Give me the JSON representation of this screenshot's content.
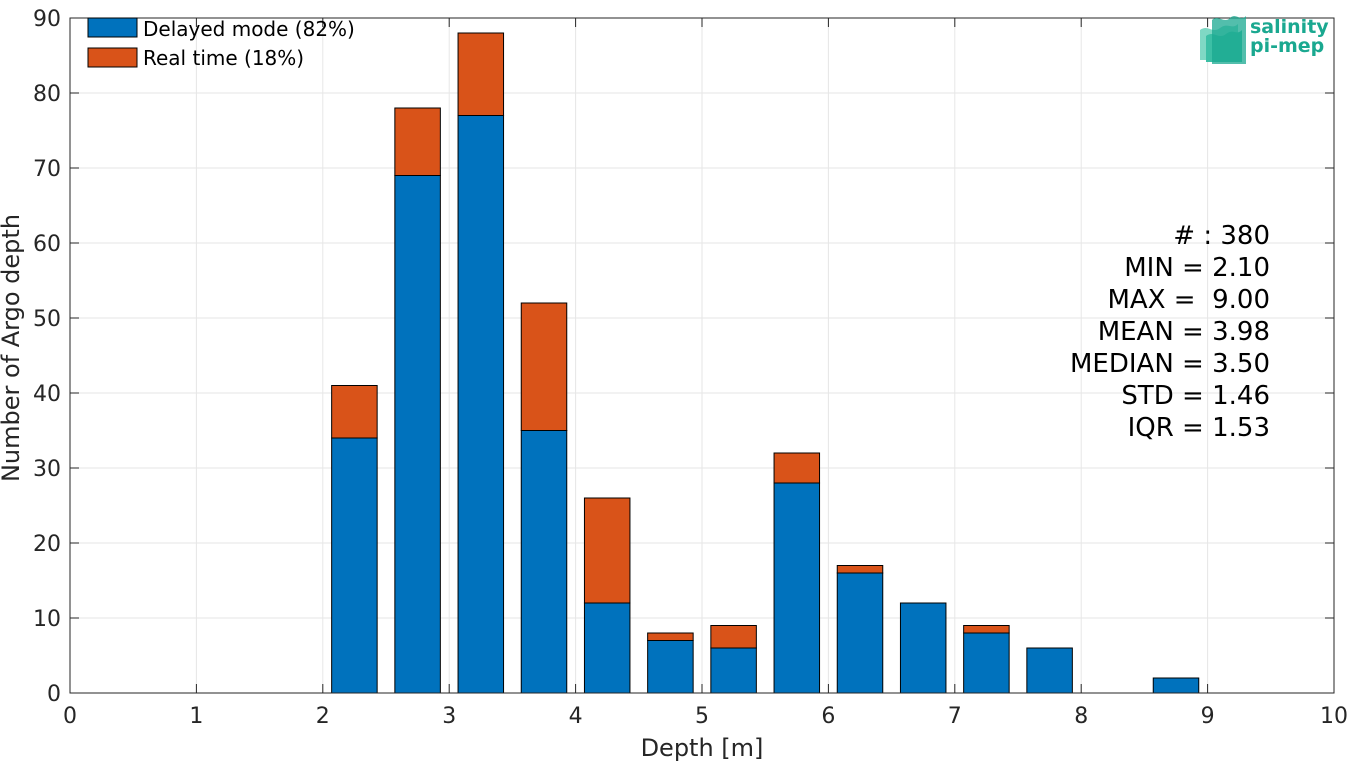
{
  "chart_data": {
    "type": "bar",
    "stacked": true,
    "xlabel": "Depth [m]",
    "ylabel": "Number of Argo depth",
    "xlim": [
      0,
      10
    ],
    "ylim": [
      0,
      90
    ],
    "xticks": [
      0,
      1,
      2,
      3,
      4,
      5,
      6,
      7,
      8,
      9,
      10
    ],
    "yticks": [
      0,
      10,
      20,
      30,
      40,
      50,
      60,
      70,
      80,
      90
    ],
    "grid": true,
    "legend_position": "top-left",
    "bin_width": 0.5,
    "x": [
      0.25,
      0.75,
      1.25,
      1.75,
      2.25,
      2.75,
      3.25,
      3.75,
      4.25,
      4.75,
      5.25,
      5.75,
      6.25,
      6.75,
      7.25,
      7.75,
      8.25,
      8.75,
      9.25,
      9.75
    ],
    "series": [
      {
        "name": "Delayed mode (82%)",
        "color": "#0072BD",
        "values": [
          0,
          0,
          0,
          0,
          34,
          69,
          77,
          35,
          12,
          7,
          6,
          28,
          16,
          12,
          8,
          6,
          0,
          2,
          0,
          0
        ]
      },
      {
        "name": "Real time (18%)",
        "color": "#D95319",
        "values": [
          0,
          0,
          0,
          0,
          7,
          9,
          11,
          17,
          14,
          1,
          3,
          4,
          1,
          0,
          1,
          0,
          0,
          0,
          0,
          0
        ]
      }
    ],
    "stats": [
      "# : 380",
      "MIN = 2.10",
      "MAX =  9.00",
      "MEAN = 3.98",
      "MEDIAN = 3.50",
      "STD = 1.46",
      "IQR = 1.53"
    ]
  },
  "logo": {
    "line1": "salinity",
    "line2": "pi-mep"
  }
}
